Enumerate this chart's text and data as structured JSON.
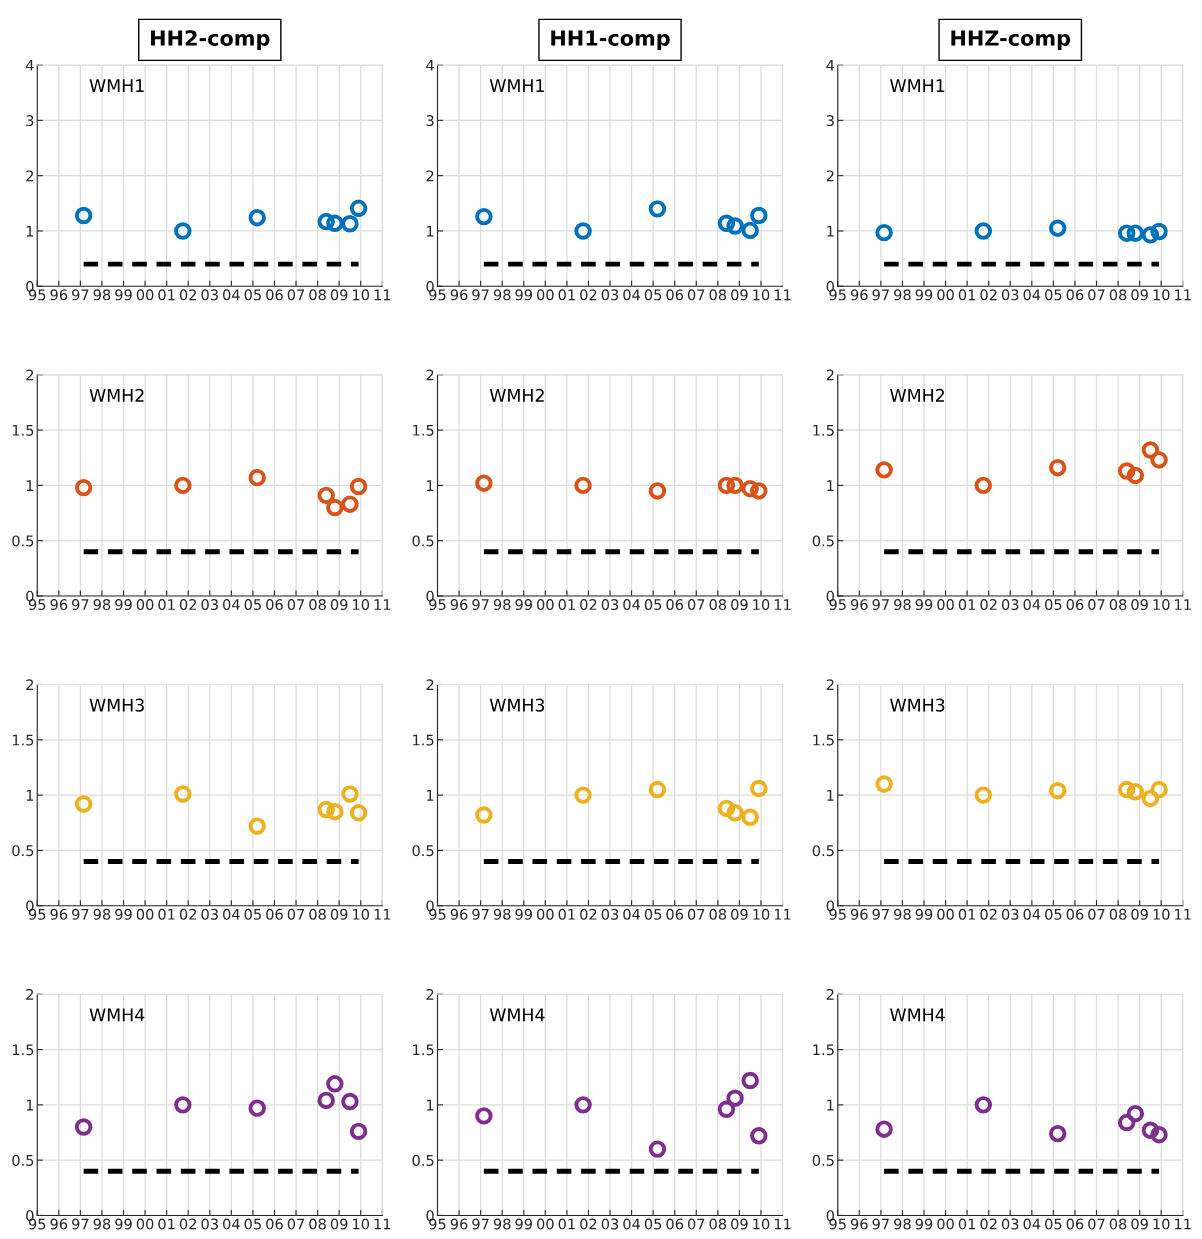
{
  "chart_data": [
    {
      "type": "scatter",
      "title": "HH2-comp",
      "annotations": [
        "WMH1"
      ],
      "x": [
        1997.15,
        2001.75,
        2005.2,
        2008.4,
        2008.8,
        2009.5,
        2009.9
      ],
      "series": [
        {
          "color": "#0072bd",
          "values": [
            1.28,
            1.0,
            1.24,
            1.17,
            1.14,
            1.13,
            1.41
          ],
          "marker": "circle"
        },
        {
          "type": "line",
          "values": [
            0.4,
            0.4,
            0.4,
            0.4,
            0.4,
            0.4,
            0.4
          ],
          "color": "#000000",
          "line_style": "dashed"
        }
      ],
      "xlim": [
        1995,
        2011
      ],
      "xticks": [
        {
          "value": 1995,
          "label": "95"
        },
        {
          "value": 1996,
          "label": "96"
        },
        {
          "value": 1997,
          "label": "97"
        },
        {
          "value": 1998,
          "label": "98"
        },
        {
          "value": 1999,
          "label": "99"
        },
        {
          "value": 2000,
          "label": "00"
        },
        {
          "value": 2001,
          "label": "01"
        },
        {
          "value": 2002,
          "label": "02"
        },
        {
          "value": 2003,
          "label": "03"
        },
        {
          "value": 2004,
          "label": "04"
        },
        {
          "value": 2005,
          "label": "05"
        },
        {
          "value": 2006,
          "label": "06"
        },
        {
          "value": 2007,
          "label": "07"
        },
        {
          "value": 2008,
          "label": "08"
        },
        {
          "value": 2009,
          "label": "09"
        },
        {
          "value": 2010,
          "label": "10"
        },
        {
          "value": 2011,
          "label": "11"
        }
      ],
      "ylim": [
        0,
        4
      ],
      "yticks": [
        0,
        1,
        2,
        3,
        4
      ],
      "grid": true
    },
    {
      "type": "scatter",
      "title": "HH1-comp",
      "annotations": [
        "WMH1"
      ],
      "x": [
        1997.15,
        2001.75,
        2005.2,
        2008.4,
        2008.8,
        2009.5,
        2009.9
      ],
      "series": [
        {
          "color": "#0072bd",
          "values": [
            1.26,
            1.0,
            1.4,
            1.14,
            1.09,
            1.01,
            1.28
          ],
          "marker": "circle"
        },
        {
          "type": "line",
          "values": [
            0.4,
            0.4,
            0.4,
            0.4,
            0.4,
            0.4,
            0.4
          ],
          "color": "#000000",
          "line_style": "dashed"
        }
      ],
      "xlim": [
        1995,
        2011
      ],
      "xticks": [
        {
          "value": 1995,
          "label": "95"
        },
        {
          "value": 1996,
          "label": "96"
        },
        {
          "value": 1997,
          "label": "97"
        },
        {
          "value": 1998,
          "label": "98"
        },
        {
          "value": 1999,
          "label": "99"
        },
        {
          "value": 2000,
          "label": "00"
        },
        {
          "value": 2001,
          "label": "01"
        },
        {
          "value": 2002,
          "label": "02"
        },
        {
          "value": 2003,
          "label": "03"
        },
        {
          "value": 2004,
          "label": "04"
        },
        {
          "value": 2005,
          "label": "05"
        },
        {
          "value": 2006,
          "label": "06"
        },
        {
          "value": 2007,
          "label": "07"
        },
        {
          "value": 2008,
          "label": "08"
        },
        {
          "value": 2009,
          "label": "09"
        },
        {
          "value": 2010,
          "label": "10"
        },
        {
          "value": 2011,
          "label": "11"
        }
      ],
      "ylim": [
        0,
        4
      ],
      "yticks": [
        0,
        1,
        2,
        3,
        4
      ],
      "grid": true
    },
    {
      "type": "scatter",
      "title": "HHZ-comp",
      "annotations": [
        "WMH1"
      ],
      "x": [
        1997.15,
        2001.75,
        2005.2,
        2008.4,
        2008.8,
        2009.5,
        2009.9
      ],
      "series": [
        {
          "color": "#0072bd",
          "values": [
            0.97,
            1.0,
            1.05,
            0.96,
            0.96,
            0.93,
            0.99
          ],
          "marker": "circle"
        },
        {
          "type": "line",
          "values": [
            0.4,
            0.4,
            0.4,
            0.4,
            0.4,
            0.4,
            0.4
          ],
          "color": "#000000",
          "line_style": "dashed"
        }
      ],
      "xlim": [
        1995,
        2011
      ],
      "xticks": [
        {
          "value": 1995,
          "label": "95"
        },
        {
          "value": 1996,
          "label": "96"
        },
        {
          "value": 1997,
          "label": "97"
        },
        {
          "value": 1998,
          "label": "98"
        },
        {
          "value": 1999,
          "label": "99"
        },
        {
          "value": 2000,
          "label": "00"
        },
        {
          "value": 2001,
          "label": "01"
        },
        {
          "value": 2002,
          "label": "02"
        },
        {
          "value": 2003,
          "label": "03"
        },
        {
          "value": 2004,
          "label": "04"
        },
        {
          "value": 2005,
          "label": "05"
        },
        {
          "value": 2006,
          "label": "06"
        },
        {
          "value": 2007,
          "label": "07"
        },
        {
          "value": 2008,
          "label": "08"
        },
        {
          "value": 2009,
          "label": "09"
        },
        {
          "value": 2010,
          "label": "10"
        },
        {
          "value": 2011,
          "label": "11"
        }
      ],
      "ylim": [
        0,
        4
      ],
      "yticks": [
        0,
        1,
        2,
        3,
        4
      ],
      "grid": true
    },
    {
      "type": "scatter",
      "annotations": [
        "WMH2"
      ],
      "x": [
        1997.15,
        2001.75,
        2005.2,
        2008.4,
        2008.8,
        2009.5,
        2009.9
      ],
      "series": [
        {
          "color": "#d95319",
          "values": [
            0.98,
            1.0,
            1.07,
            0.91,
            0.8,
            0.83,
            0.99
          ],
          "marker": "circle"
        },
        {
          "type": "line",
          "values": [
            0.4,
            0.4,
            0.4,
            0.4,
            0.4,
            0.4,
            0.4
          ],
          "color": "#000000",
          "line_style": "dashed"
        }
      ],
      "xlim": [
        1995,
        2011
      ],
      "xticks": [
        {
          "value": 1995,
          "label": "95"
        },
        {
          "value": 1996,
          "label": "96"
        },
        {
          "value": 1997,
          "label": "97"
        },
        {
          "value": 1998,
          "label": "98"
        },
        {
          "value": 1999,
          "label": "99"
        },
        {
          "value": 2000,
          "label": "00"
        },
        {
          "value": 2001,
          "label": "01"
        },
        {
          "value": 2002,
          "label": "02"
        },
        {
          "value": 2003,
          "label": "03"
        },
        {
          "value": 2004,
          "label": "04"
        },
        {
          "value": 2005,
          "label": "05"
        },
        {
          "value": 2006,
          "label": "06"
        },
        {
          "value": 2007,
          "label": "07"
        },
        {
          "value": 2008,
          "label": "08"
        },
        {
          "value": 2009,
          "label": "09"
        },
        {
          "value": 2010,
          "label": "10"
        },
        {
          "value": 2011,
          "label": "11"
        }
      ],
      "ylim": [
        0,
        2
      ],
      "yticks": [
        0,
        0.5,
        1,
        1.5,
        2
      ],
      "grid": true
    },
    {
      "type": "scatter",
      "annotations": [
        "WMH2"
      ],
      "x": [
        1997.15,
        2001.75,
        2005.2,
        2008.4,
        2008.8,
        2009.5,
        2009.9
      ],
      "series": [
        {
          "color": "#d95319",
          "values": [
            1.02,
            1.0,
            0.95,
            1.0,
            1.0,
            0.97,
            0.95
          ],
          "marker": "circle"
        },
        {
          "type": "line",
          "values": [
            0.4,
            0.4,
            0.4,
            0.4,
            0.4,
            0.4,
            0.4
          ],
          "color": "#000000",
          "line_style": "dashed"
        }
      ],
      "xlim": [
        1995,
        2011
      ],
      "xticks": [
        {
          "value": 1995,
          "label": "95"
        },
        {
          "value": 1996,
          "label": "96"
        },
        {
          "value": 1997,
          "label": "97"
        },
        {
          "value": 1998,
          "label": "98"
        },
        {
          "value": 1999,
          "label": "99"
        },
        {
          "value": 2000,
          "label": "00"
        },
        {
          "value": 2001,
          "label": "01"
        },
        {
          "value": 2002,
          "label": "02"
        },
        {
          "value": 2003,
          "label": "03"
        },
        {
          "value": 2004,
          "label": "04"
        },
        {
          "value": 2005,
          "label": "05"
        },
        {
          "value": 2006,
          "label": "06"
        },
        {
          "value": 2007,
          "label": "07"
        },
        {
          "value": 2008,
          "label": "08"
        },
        {
          "value": 2009,
          "label": "09"
        },
        {
          "value": 2010,
          "label": "10"
        },
        {
          "value": 2011,
          "label": "11"
        }
      ],
      "ylim": [
        0,
        2
      ],
      "yticks": [
        0,
        0.5,
        1,
        1.5,
        2
      ],
      "grid": true
    },
    {
      "type": "scatter",
      "annotations": [
        "WMH2"
      ],
      "x": [
        1997.15,
        2001.75,
        2005.2,
        2008.4,
        2008.8,
        2009.5,
        2009.9
      ],
      "series": [
        {
          "color": "#d95319",
          "values": [
            1.14,
            1.0,
            1.16,
            1.13,
            1.09,
            1.32,
            1.23
          ],
          "marker": "circle"
        },
        {
          "type": "line",
          "values": [
            0.4,
            0.4,
            0.4,
            0.4,
            0.4,
            0.4,
            0.4
          ],
          "color": "#000000",
          "line_style": "dashed"
        }
      ],
      "xlim": [
        1995,
        2011
      ],
      "xticks": [
        {
          "value": 1995,
          "label": "95"
        },
        {
          "value": 1996,
          "label": "96"
        },
        {
          "value": 1997,
          "label": "97"
        },
        {
          "value": 1998,
          "label": "98"
        },
        {
          "value": 1999,
          "label": "99"
        },
        {
          "value": 2000,
          "label": "00"
        },
        {
          "value": 2001,
          "label": "01"
        },
        {
          "value": 2002,
          "label": "02"
        },
        {
          "value": 2003,
          "label": "03"
        },
        {
          "value": 2004,
          "label": "04"
        },
        {
          "value": 2005,
          "label": "05"
        },
        {
          "value": 2006,
          "label": "06"
        },
        {
          "value": 2007,
          "label": "07"
        },
        {
          "value": 2008,
          "label": "08"
        },
        {
          "value": 2009,
          "label": "09"
        },
        {
          "value": 2010,
          "label": "10"
        },
        {
          "value": 2011,
          "label": "11"
        }
      ],
      "ylim": [
        0,
        2
      ],
      "yticks": [
        0,
        0.5,
        1,
        1.5,
        2
      ],
      "grid": true
    },
    {
      "type": "scatter",
      "annotations": [
        "WMH3"
      ],
      "x": [
        1997.15,
        2001.75,
        2005.2,
        2008.4,
        2008.8,
        2009.5,
        2009.9
      ],
      "series": [
        {
          "color": "#edb120",
          "values": [
            0.92,
            1.01,
            0.72,
            0.87,
            0.85,
            1.01,
            0.84
          ],
          "marker": "circle"
        },
        {
          "type": "line",
          "values": [
            0.4,
            0.4,
            0.4,
            0.4,
            0.4,
            0.4,
            0.4
          ],
          "color": "#000000",
          "line_style": "dashed"
        }
      ],
      "xlim": [
        1995,
        2011
      ],
      "xticks": [
        {
          "value": 1995,
          "label": "95"
        },
        {
          "value": 1996,
          "label": "96"
        },
        {
          "value": 1997,
          "label": "97"
        },
        {
          "value": 1998,
          "label": "98"
        },
        {
          "value": 1999,
          "label": "99"
        },
        {
          "value": 2000,
          "label": "00"
        },
        {
          "value": 2001,
          "label": "01"
        },
        {
          "value": 2002,
          "label": "02"
        },
        {
          "value": 2003,
          "label": "03"
        },
        {
          "value": 2004,
          "label": "04"
        },
        {
          "value": 2005,
          "label": "05"
        },
        {
          "value": 2006,
          "label": "06"
        },
        {
          "value": 2007,
          "label": "07"
        },
        {
          "value": 2008,
          "label": "08"
        },
        {
          "value": 2009,
          "label": "09"
        },
        {
          "value": 2010,
          "label": "10"
        },
        {
          "value": 2011,
          "label": "11"
        }
      ],
      "ylim": [
        0,
        2
      ],
      "yticks": [
        0,
        0.5,
        1,
        1.5,
        2
      ],
      "grid": true
    },
    {
      "type": "scatter",
      "annotations": [
        "WMH3"
      ],
      "x": [
        1997.15,
        2001.75,
        2005.2,
        2008.4,
        2008.8,
        2009.5,
        2009.9
      ],
      "series": [
        {
          "color": "#edb120",
          "values": [
            0.82,
            1.0,
            1.05,
            0.88,
            0.84,
            0.8,
            1.06
          ],
          "marker": "circle"
        },
        {
          "type": "line",
          "values": [
            0.4,
            0.4,
            0.4,
            0.4,
            0.4,
            0.4,
            0.4
          ],
          "color": "#000000",
          "line_style": "dashed"
        }
      ],
      "xlim": [
        1995,
        2011
      ],
      "xticks": [
        {
          "value": 1995,
          "label": "95"
        },
        {
          "value": 1996,
          "label": "96"
        },
        {
          "value": 1997,
          "label": "97"
        },
        {
          "value": 1998,
          "label": "98"
        },
        {
          "value": 1999,
          "label": "99"
        },
        {
          "value": 2000,
          "label": "00"
        },
        {
          "value": 2001,
          "label": "01"
        },
        {
          "value": 2002,
          "label": "02"
        },
        {
          "value": 2003,
          "label": "03"
        },
        {
          "value": 2004,
          "label": "04"
        },
        {
          "value": 2005,
          "label": "05"
        },
        {
          "value": 2006,
          "label": "06"
        },
        {
          "value": 2007,
          "label": "07"
        },
        {
          "value": 2008,
          "label": "08"
        },
        {
          "value": 2009,
          "label": "09"
        },
        {
          "value": 2010,
          "label": "10"
        },
        {
          "value": 2011,
          "label": "11"
        }
      ],
      "ylim": [
        0,
        2
      ],
      "yticks": [
        0,
        0.5,
        1,
        1.5,
        2
      ],
      "grid": true
    },
    {
      "type": "scatter",
      "annotations": [
        "WMH3"
      ],
      "x": [
        1997.15,
        2001.75,
        2005.2,
        2008.4,
        2008.8,
        2009.5,
        2009.9
      ],
      "series": [
        {
          "color": "#edb120",
          "values": [
            1.1,
            1.0,
            1.04,
            1.05,
            1.03,
            0.97,
            1.05
          ],
          "marker": "circle"
        },
        {
          "type": "line",
          "values": [
            0.4,
            0.4,
            0.4,
            0.4,
            0.4,
            0.4,
            0.4
          ],
          "color": "#000000",
          "line_style": "dashed"
        }
      ],
      "xlim": [
        1995,
        2011
      ],
      "xticks": [
        {
          "value": 1995,
          "label": "95"
        },
        {
          "value": 1996,
          "label": "96"
        },
        {
          "value": 1997,
          "label": "97"
        },
        {
          "value": 1998,
          "label": "98"
        },
        {
          "value": 1999,
          "label": "99"
        },
        {
          "value": 2000,
          "label": "00"
        },
        {
          "value": 2001,
          "label": "01"
        },
        {
          "value": 2002,
          "label": "02"
        },
        {
          "value": 2003,
          "label": "03"
        },
        {
          "value": 2004,
          "label": "04"
        },
        {
          "value": 2005,
          "label": "05"
        },
        {
          "value": 2006,
          "label": "06"
        },
        {
          "value": 2007,
          "label": "07"
        },
        {
          "value": 2008,
          "label": "08"
        },
        {
          "value": 2009,
          "label": "09"
        },
        {
          "value": 2010,
          "label": "10"
        },
        {
          "value": 2011,
          "label": "11"
        }
      ],
      "ylim": [
        0,
        2
      ],
      "yticks": [
        0,
        0.5,
        1,
        1.5,
        2
      ],
      "grid": true
    },
    {
      "type": "scatter",
      "annotations": [
        "WMH4"
      ],
      "x": [
        1997.15,
        2001.75,
        2005.2,
        2008.4,
        2008.8,
        2009.5,
        2009.9
      ],
      "series": [
        {
          "color": "#7e2f8e",
          "values": [
            0.8,
            1.0,
            0.97,
            1.04,
            1.19,
            1.03,
            0.76
          ],
          "marker": "circle"
        },
        {
          "type": "line",
          "values": [
            0.4,
            0.4,
            0.4,
            0.4,
            0.4,
            0.4,
            0.4
          ],
          "color": "#000000",
          "line_style": "dashed"
        }
      ],
      "xlim": [
        1995,
        2011
      ],
      "xticks": [
        {
          "value": 1995,
          "label": "95"
        },
        {
          "value": 1996,
          "label": "96"
        },
        {
          "value": 1997,
          "label": "97"
        },
        {
          "value": 1998,
          "label": "98"
        },
        {
          "value": 1999,
          "label": "99"
        },
        {
          "value": 2000,
          "label": "00"
        },
        {
          "value": 2001,
          "label": "01"
        },
        {
          "value": 2002,
          "label": "02"
        },
        {
          "value": 2003,
          "label": "03"
        },
        {
          "value": 2004,
          "label": "04"
        },
        {
          "value": 2005,
          "label": "05"
        },
        {
          "value": 2006,
          "label": "06"
        },
        {
          "value": 2007,
          "label": "07"
        },
        {
          "value": 2008,
          "label": "08"
        },
        {
          "value": 2009,
          "label": "09"
        },
        {
          "value": 2010,
          "label": "10"
        },
        {
          "value": 2011,
          "label": "11"
        }
      ],
      "ylim": [
        0,
        2
      ],
      "yticks": [
        0,
        0.5,
        1,
        1.5,
        2
      ],
      "grid": true
    },
    {
      "type": "scatter",
      "annotations": [
        "WMH4"
      ],
      "x": [
        1997.15,
        2001.75,
        2005.2,
        2008.4,
        2008.8,
        2009.5,
        2009.9
      ],
      "series": [
        {
          "color": "#7e2f8e",
          "values": [
            0.9,
            1.0,
            0.6,
            0.96,
            1.06,
            1.22,
            0.72
          ],
          "marker": "circle"
        },
        {
          "type": "line",
          "values": [
            0.4,
            0.4,
            0.4,
            0.4,
            0.4,
            0.4,
            0.4
          ],
          "color": "#000000",
          "line_style": "dashed"
        }
      ],
      "xlim": [
        1995,
        2011
      ],
      "xticks": [
        {
          "value": 1995,
          "label": "95"
        },
        {
          "value": 1996,
          "label": "96"
        },
        {
          "value": 1997,
          "label": "97"
        },
        {
          "value": 1998,
          "label": "98"
        },
        {
          "value": 1999,
          "label": "99"
        },
        {
          "value": 2000,
          "label": "00"
        },
        {
          "value": 2001,
          "label": "01"
        },
        {
          "value": 2002,
          "label": "02"
        },
        {
          "value": 2003,
          "label": "03"
        },
        {
          "value": 2004,
          "label": "04"
        },
        {
          "value": 2005,
          "label": "05"
        },
        {
          "value": 2006,
          "label": "06"
        },
        {
          "value": 2007,
          "label": "07"
        },
        {
          "value": 2008,
          "label": "08"
        },
        {
          "value": 2009,
          "label": "09"
        },
        {
          "value": 2010,
          "label": "10"
        },
        {
          "value": 2011,
          "label": "11"
        }
      ],
      "ylim": [
        0,
        2
      ],
      "yticks": [
        0,
        0.5,
        1,
        1.5,
        2
      ],
      "grid": true
    },
    {
      "type": "scatter",
      "annotations": [
        "WMH4"
      ],
      "x": [
        1997.15,
        2001.75,
        2005.2,
        2008.4,
        2008.8,
        2009.5,
        2009.9
      ],
      "series": [
        {
          "color": "#7e2f8e",
          "values": [
            0.78,
            1.0,
            0.74,
            0.84,
            0.92,
            0.77,
            0.73
          ],
          "marker": "circle"
        },
        {
          "type": "line",
          "values": [
            0.4,
            0.4,
            0.4,
            0.4,
            0.4,
            0.4,
            0.4
          ],
          "color": "#000000",
          "line_style": "dashed"
        }
      ],
      "xlim": [
        1995,
        2011
      ],
      "xticks": [
        {
          "value": 1995,
          "label": "95"
        },
        {
          "value": 1996,
          "label": "96"
        },
        {
          "value": 1997,
          "label": "97"
        },
        {
          "value": 1998,
          "label": "98"
        },
        {
          "value": 1999,
          "label": "99"
        },
        {
          "value": 2000,
          "label": "00"
        },
        {
          "value": 2001,
          "label": "01"
        },
        {
          "value": 2002,
          "label": "02"
        },
        {
          "value": 2003,
          "label": "03"
        },
        {
          "value": 2004,
          "label": "04"
        },
        {
          "value": 2005,
          "label": "05"
        },
        {
          "value": 2006,
          "label": "06"
        },
        {
          "value": 2007,
          "label": "07"
        },
        {
          "value": 2008,
          "label": "08"
        },
        {
          "value": 2009,
          "label": "09"
        },
        {
          "value": 2010,
          "label": "10"
        },
        {
          "value": 2011,
          "label": "11"
        }
      ],
      "ylim": [
        0,
        2
      ],
      "yticks": [
        0,
        0.5,
        1,
        1.5,
        2
      ],
      "grid": true
    }
  ]
}
